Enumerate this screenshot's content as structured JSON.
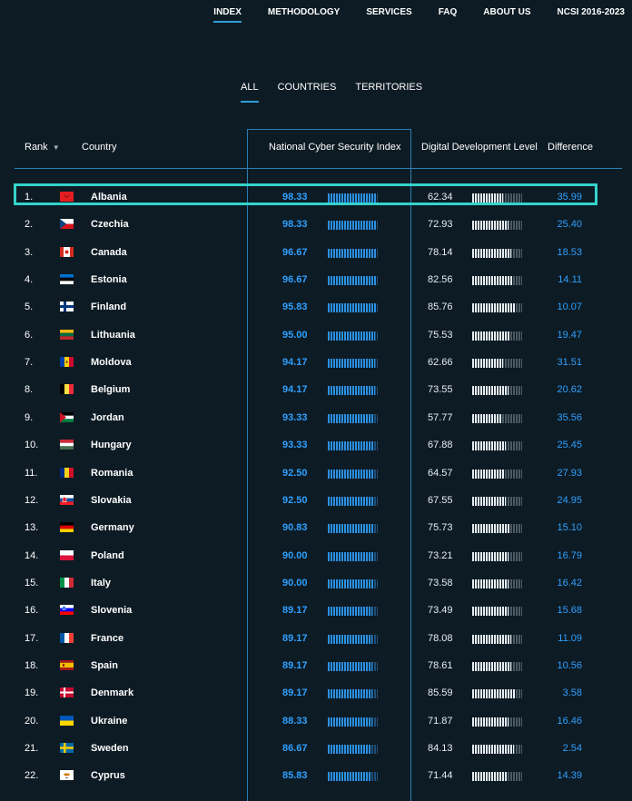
{
  "nav": {
    "items": [
      "INDEX",
      "METHODOLOGY",
      "SERVICES",
      "FAQ",
      "ABOUT US",
      "NCSI 2016-2023"
    ],
    "active": "INDEX"
  },
  "tabs": {
    "items": [
      "ALL",
      "COUNTRIES",
      "TERRITORIES"
    ],
    "active": "ALL"
  },
  "columns": {
    "rank": "Rank",
    "country": "Country",
    "ncsi": "National Cyber Security Index",
    "ddl": "Digital Development Level",
    "difference": "Difference"
  },
  "rows": [
    {
      "rank": "1.",
      "country": "Albania",
      "flag": "albania-flag",
      "ncsi": "98.33",
      "ddl": "62.34",
      "diff": "35.99",
      "selected": true
    },
    {
      "rank": "2.",
      "country": "Czechia",
      "flag": "czechia-flag",
      "ncsi": "98.33",
      "ddl": "72.93",
      "diff": "25.40"
    },
    {
      "rank": "3.",
      "country": "Canada",
      "flag": "canada-flag",
      "ncsi": "96.67",
      "ddl": "78.14",
      "diff": "18.53"
    },
    {
      "rank": "4.",
      "country": "Estonia",
      "flag": "estonia-flag",
      "ncsi": "96.67",
      "ddl": "82.56",
      "diff": "14.11"
    },
    {
      "rank": "5.",
      "country": "Finland",
      "flag": "finland-flag",
      "ncsi": "95.83",
      "ddl": "85.76",
      "diff": "10.07"
    },
    {
      "rank": "6.",
      "country": "Lithuania",
      "flag": "lithuania-flag",
      "ncsi": "95.00",
      "ddl": "75.53",
      "diff": "19.47"
    },
    {
      "rank": "7.",
      "country": "Moldova",
      "flag": "moldova-flag",
      "ncsi": "94.17",
      "ddl": "62.66",
      "diff": "31.51"
    },
    {
      "rank": "8.",
      "country": "Belgium",
      "flag": "belgium-flag",
      "ncsi": "94.17",
      "ddl": "73.55",
      "diff": "20.62"
    },
    {
      "rank": "9.",
      "country": "Jordan",
      "flag": "jordan-flag",
      "ncsi": "93.33",
      "ddl": "57.77",
      "diff": "35.56"
    },
    {
      "rank": "10.",
      "country": "Hungary",
      "flag": "hungary-flag",
      "ncsi": "93.33",
      "ddl": "67.88",
      "diff": "25.45"
    },
    {
      "rank": "11.",
      "country": "Romania",
      "flag": "romania-flag",
      "ncsi": "92.50",
      "ddl": "64.57",
      "diff": "27.93"
    },
    {
      "rank": "12.",
      "country": "Slovakia",
      "flag": "slovakia-flag",
      "ncsi": "92.50",
      "ddl": "67.55",
      "diff": "24.95"
    },
    {
      "rank": "13.",
      "country": "Germany",
      "flag": "germany-flag",
      "ncsi": "90.83",
      "ddl": "75.73",
      "diff": "15.10"
    },
    {
      "rank": "14.",
      "country": "Poland",
      "flag": "poland-flag",
      "ncsi": "90.00",
      "ddl": "73.21",
      "diff": "16.79"
    },
    {
      "rank": "15.",
      "country": "Italy",
      "flag": "italy-flag",
      "ncsi": "90.00",
      "ddl": "73.58",
      "diff": "16.42"
    },
    {
      "rank": "16.",
      "country": "Slovenia",
      "flag": "slovenia-flag",
      "ncsi": "89.17",
      "ddl": "73.49",
      "diff": "15.68"
    },
    {
      "rank": "17.",
      "country": "France",
      "flag": "france-flag",
      "ncsi": "89.17",
      "ddl": "78.08",
      "diff": "11.09"
    },
    {
      "rank": "18.",
      "country": "Spain",
      "flag": "spain-flag",
      "ncsi": "89.17",
      "ddl": "78.61",
      "diff": "10.56"
    },
    {
      "rank": "19.",
      "country": "Denmark",
      "flag": "denmark-flag",
      "ncsi": "89.17",
      "ddl": "85.59",
      "diff": "3.58"
    },
    {
      "rank": "20.",
      "country": "Ukraine",
      "flag": "ukraine-flag",
      "ncsi": "88.33",
      "ddl": "71.87",
      "diff": "16.46"
    },
    {
      "rank": "21.",
      "country": "Sweden",
      "flag": "sweden-flag",
      "ncsi": "86.67",
      "ddl": "84.13",
      "diff": "2.54"
    },
    {
      "rank": "22.",
      "country": "Cyprus",
      "flag": "cyprus-flag",
      "ncsi": "85.83",
      "ddl": "71.44",
      "diff": "14.39"
    }
  ],
  "colors": {
    "background": "#0d1b24",
    "accent": "#2fa0ff",
    "selection": "#34d3cb",
    "ddl_bar": "#e6eef3",
    "ncsi_bar": "#2b90e3"
  }
}
